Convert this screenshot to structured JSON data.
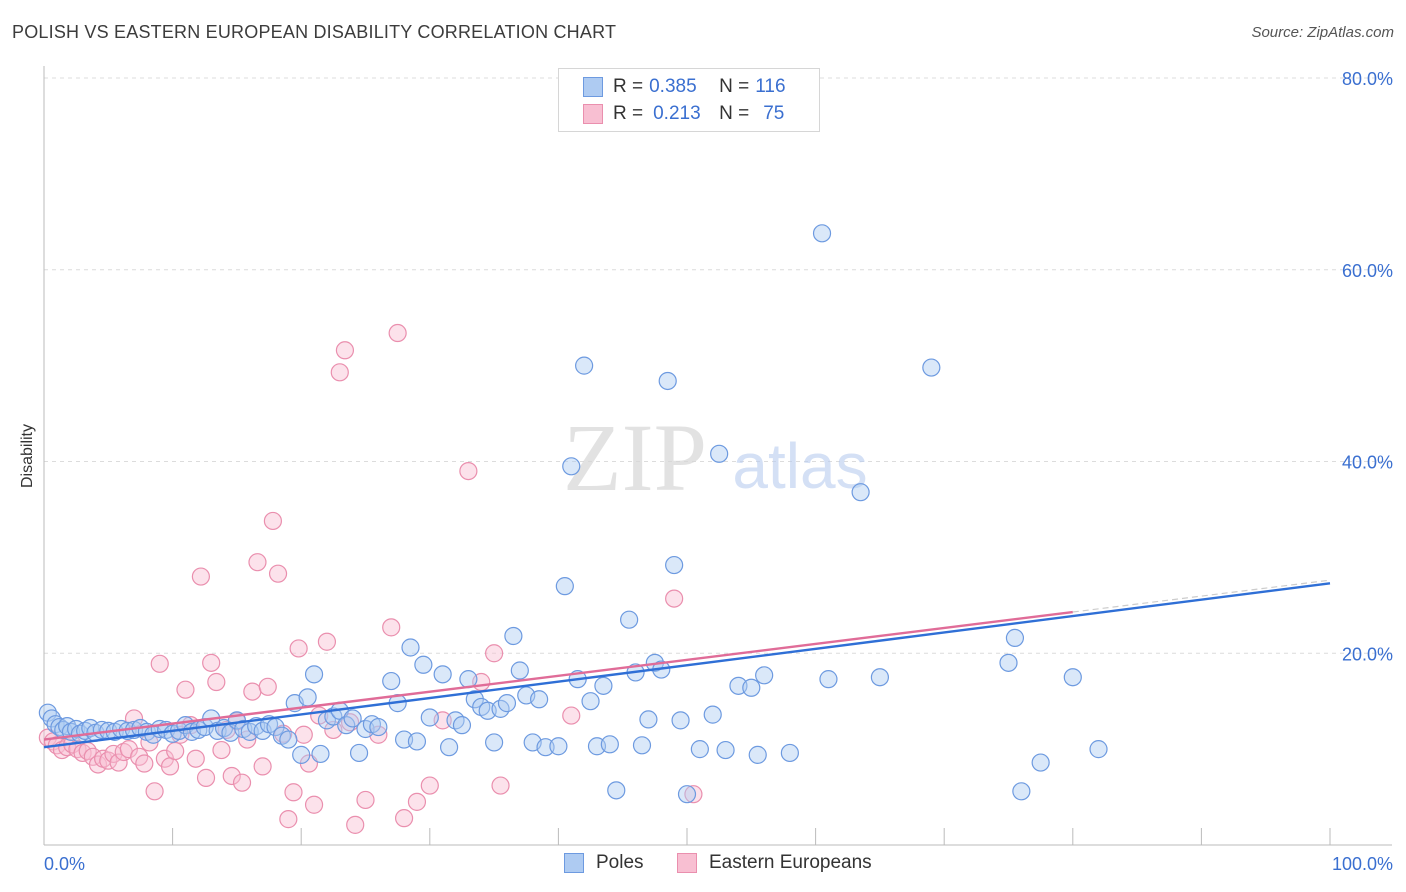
{
  "header": {
    "title": "POLISH VS EASTERN EUROPEAN DISABILITY CORRELATION CHART",
    "source": "Source: ZipAtlas.com"
  },
  "watermark": {
    "part1": "ZIP",
    "part2": "atlas"
  },
  "legend": {
    "poles": {
      "r_label": "R =",
      "r_value": "0.385",
      "n_label": "N =",
      "n_value": "116",
      "name": "Poles"
    },
    "eastern": {
      "r_label": "R =",
      "r_value": "0.213",
      "n_label": "N =",
      "n_value": "75",
      "name": "Eastern Europeans"
    }
  },
  "colors": {
    "poles_fill": "#aecbf2",
    "poles_stroke": "#6d9ae0",
    "poles_line": "#2f6fd6",
    "eastern_fill": "#f8bfd2",
    "eastern_stroke": "#ea8fae",
    "eastern_line": "#e06c98",
    "axis_text": "#3a6fd0",
    "grid": "#dcdcdc"
  },
  "chart_data": {
    "type": "scatter",
    "title": "POLISH VS EASTERN EUROPEAN DISABILITY CORRELATION CHART",
    "xlabel": "",
    "ylabel": "Disability",
    "xlim": [
      0,
      100
    ],
    "ylim": [
      0,
      80
    ],
    "x_tick_labels": [
      "0.0%",
      "100.0%"
    ],
    "y_ticks": [
      20,
      40,
      60,
      80
    ],
    "y_tick_labels": [
      "20.0%",
      "40.0%",
      "60.0%",
      "80.0%"
    ],
    "series": [
      {
        "name": "Poles",
        "trend": {
          "x0": 0,
          "y0": 10.2,
          "x1": 100,
          "y1": 27.3
        },
        "points": [
          [
            0.3,
            13.8
          ],
          [
            0.6,
            13.2
          ],
          [
            0.9,
            12.6
          ],
          [
            1.2,
            12.3
          ],
          [
            1.5,
            12.0
          ],
          [
            1.8,
            12.4
          ],
          [
            2.1,
            11.8
          ],
          [
            2.5,
            12.1
          ],
          [
            2.8,
            11.6
          ],
          [
            3.2,
            11.9
          ],
          [
            3.6,
            12.2
          ],
          [
            4.0,
            11.7
          ],
          [
            4.5,
            12.0
          ],
          [
            5.0,
            11.9
          ],
          [
            5.5,
            11.8
          ],
          [
            6.0,
            12.1
          ],
          [
            6.5,
            11.9
          ],
          [
            7.0,
            12.0
          ],
          [
            7.5,
            12.2
          ],
          [
            8.0,
            11.8
          ],
          [
            8.5,
            11.5
          ],
          [
            9.0,
            12.1
          ],
          [
            9.5,
            12.0
          ],
          [
            10.0,
            11.6
          ],
          [
            10.5,
            11.9
          ],
          [
            11.0,
            12.5
          ],
          [
            11.5,
            11.8
          ],
          [
            12.0,
            12.0
          ],
          [
            12.5,
            12.3
          ],
          [
            13.0,
            13.2
          ],
          [
            13.5,
            11.9
          ],
          [
            14.0,
            12.2
          ],
          [
            14.5,
            11.7
          ],
          [
            15.0,
            13.0
          ],
          [
            15.5,
            12.1
          ],
          [
            16.0,
            11.8
          ],
          [
            16.5,
            12.4
          ],
          [
            17.0,
            11.9
          ],
          [
            17.5,
            12.6
          ],
          [
            18.0,
            12.3
          ],
          [
            18.5,
            11.4
          ],
          [
            19.0,
            11.0
          ],
          [
            19.5,
            14.8
          ],
          [
            20.0,
            9.4
          ],
          [
            20.5,
            15.4
          ],
          [
            21.0,
            17.8
          ],
          [
            21.5,
            9.5
          ],
          [
            22.0,
            13.0
          ],
          [
            22.5,
            13.4
          ],
          [
            23.0,
            14.0
          ],
          [
            23.5,
            12.5
          ],
          [
            24.0,
            13.2
          ],
          [
            24.5,
            9.6
          ],
          [
            25.0,
            12.1
          ],
          [
            25.5,
            12.6
          ],
          [
            26.0,
            12.3
          ],
          [
            27.0,
            17.1
          ],
          [
            27.5,
            14.8
          ],
          [
            28.0,
            11.0
          ],
          [
            28.5,
            20.6
          ],
          [
            29.0,
            10.8
          ],
          [
            29.5,
            18.8
          ],
          [
            30.0,
            13.3
          ],
          [
            31.0,
            17.8
          ],
          [
            31.5,
            10.2
          ],
          [
            32.0,
            13.0
          ],
          [
            32.5,
            12.5
          ],
          [
            33.0,
            17.3
          ],
          [
            33.5,
            15.2
          ],
          [
            34.0,
            14.4
          ],
          [
            34.5,
            14.0
          ],
          [
            35.0,
            10.7
          ],
          [
            35.5,
            14.2
          ],
          [
            36.0,
            14.8
          ],
          [
            36.5,
            21.8
          ],
          [
            37.0,
            18.2
          ],
          [
            37.5,
            15.6
          ],
          [
            38.0,
            10.7
          ],
          [
            38.5,
            15.2
          ],
          [
            39.0,
            10.2
          ],
          [
            40.0,
            10.3
          ],
          [
            40.5,
            27.0
          ],
          [
            41.0,
            39.5
          ],
          [
            41.5,
            17.3
          ],
          [
            42.0,
            50.0
          ],
          [
            42.5,
            15.0
          ],
          [
            43.0,
            10.3
          ],
          [
            43.5,
            16.6
          ],
          [
            44.0,
            10.5
          ],
          [
            44.5,
            5.7
          ],
          [
            45.5,
            23.5
          ],
          [
            46.0,
            18.0
          ],
          [
            46.5,
            10.4
          ],
          [
            47.0,
            13.1
          ],
          [
            47.5,
            19.0
          ],
          [
            48.0,
            18.3
          ],
          [
            48.5,
            48.4
          ],
          [
            49.0,
            29.2
          ],
          [
            49.5,
            13.0
          ],
          [
            50.0,
            5.3
          ],
          [
            51.0,
            10.0
          ],
          [
            52.0,
            13.6
          ],
          [
            52.5,
            40.8
          ],
          [
            53.0,
            9.9
          ],
          [
            54.0,
            16.6
          ],
          [
            55.0,
            16.4
          ],
          [
            55.5,
            9.4
          ],
          [
            56.0,
            17.7
          ],
          [
            58.0,
            9.6
          ],
          [
            60.5,
            63.8
          ],
          [
            61.0,
            17.3
          ],
          [
            63.5,
            36.8
          ],
          [
            65.0,
            17.5
          ],
          [
            69.0,
            49.8
          ],
          [
            75.0,
            19.0
          ],
          [
            75.5,
            21.6
          ],
          [
            76.0,
            5.6
          ],
          [
            77.5,
            8.6
          ],
          [
            80.0,
            17.5
          ],
          [
            82.0,
            10.0
          ]
        ]
      },
      {
        "name": "Eastern Europeans",
        "trend": {
          "x0": 0,
          "y0": 11.0,
          "x1": 80,
          "y1": 24.3
        },
        "points": [
          [
            0.3,
            11.2
          ],
          [
            0.7,
            10.8
          ],
          [
            1.0,
            10.4
          ],
          [
            1.4,
            9.9
          ],
          [
            1.8,
            10.2
          ],
          [
            2.2,
            10.5
          ],
          [
            2.6,
            10.0
          ],
          [
            3.0,
            9.6
          ],
          [
            3.4,
            9.8
          ],
          [
            3.8,
            9.2
          ],
          [
            4.2,
            8.4
          ],
          [
            4.6,
            9.0
          ],
          [
            5.0,
            8.8
          ],
          [
            5.4,
            9.5
          ],
          [
            5.8,
            8.6
          ],
          [
            6.2,
            9.7
          ],
          [
            6.6,
            10.0
          ],
          [
            7.0,
            13.2
          ],
          [
            7.4,
            9.2
          ],
          [
            7.8,
            8.5
          ],
          [
            8.2,
            10.7
          ],
          [
            8.6,
            5.6
          ],
          [
            9.0,
            18.9
          ],
          [
            9.4,
            9.0
          ],
          [
            9.8,
            8.2
          ],
          [
            10.2,
            9.8
          ],
          [
            10.6,
            11.5
          ],
          [
            11.0,
            16.2
          ],
          [
            11.4,
            12.5
          ],
          [
            11.8,
            9.0
          ],
          [
            12.2,
            28.0
          ],
          [
            12.6,
            7.0
          ],
          [
            13.0,
            19.0
          ],
          [
            13.4,
            17.0
          ],
          [
            13.8,
            9.9
          ],
          [
            14.2,
            12.0
          ],
          [
            14.6,
            7.2
          ],
          [
            15.0,
            12.9
          ],
          [
            15.4,
            6.5
          ],
          [
            15.8,
            11.0
          ],
          [
            16.2,
            16.0
          ],
          [
            16.6,
            29.5
          ],
          [
            17.0,
            8.2
          ],
          [
            17.4,
            16.5
          ],
          [
            17.8,
            33.8
          ],
          [
            18.2,
            28.3
          ],
          [
            18.6,
            11.6
          ],
          [
            19.0,
            2.7
          ],
          [
            19.4,
            5.5
          ],
          [
            19.8,
            20.5
          ],
          [
            20.2,
            11.5
          ],
          [
            20.6,
            8.5
          ],
          [
            21.0,
            4.2
          ],
          [
            21.4,
            13.5
          ],
          [
            22.0,
            21.2
          ],
          [
            22.5,
            12.0
          ],
          [
            23.0,
            49.3
          ],
          [
            23.4,
            51.6
          ],
          [
            23.8,
            12.8
          ],
          [
            24.2,
            2.1
          ],
          [
            25.0,
            4.7
          ],
          [
            26.0,
            11.5
          ],
          [
            27.0,
            22.7
          ],
          [
            27.5,
            53.4
          ],
          [
            28.0,
            2.8
          ],
          [
            29.0,
            4.5
          ],
          [
            30.0,
            6.2
          ],
          [
            31.0,
            13.0
          ],
          [
            33.0,
            39.0
          ],
          [
            34.0,
            17.0
          ],
          [
            35.0,
            20.0
          ],
          [
            35.5,
            6.2
          ],
          [
            41.0,
            13.5
          ],
          [
            49.0,
            25.7
          ],
          [
            50.5,
            5.3
          ]
        ]
      }
    ]
  }
}
